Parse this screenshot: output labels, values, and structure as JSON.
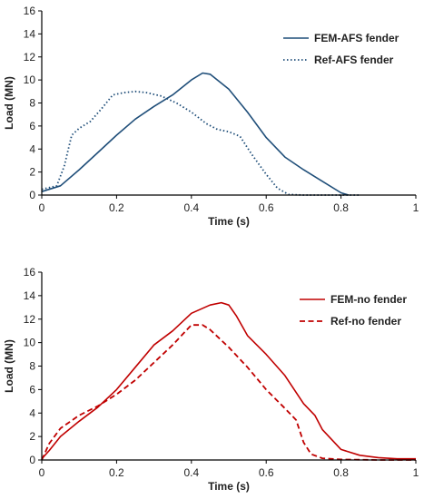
{
  "chart_data": [
    {
      "type": "line",
      "xlabel": "Time (s)",
      "ylabel": "Load (MN)",
      "xlim": [
        0,
        1
      ],
      "ylim": [
        0,
        16
      ],
      "xticks": [
        0,
        0.2,
        0.4,
        0.6,
        0.8,
        1
      ],
      "yticks": [
        0,
        2,
        4,
        6,
        8,
        10,
        12,
        14,
        16
      ],
      "xtick_labels": [
        "0",
        "0.2",
        "0.4",
        "0.6",
        "0.8",
        "1"
      ],
      "ytick_labels": [
        "0",
        "2",
        "4",
        "6",
        "8",
        "10",
        "12",
        "14",
        "16"
      ],
      "grid": false,
      "legend_position": "top-right",
      "series": [
        {
          "name": "FEM-AFS fender",
          "color": "#1f4e79",
          "style": "solid",
          "x": [
            0,
            0.05,
            0.1,
            0.15,
            0.2,
            0.25,
            0.3,
            0.35,
            0.4,
            0.43,
            0.45,
            0.5,
            0.55,
            0.6,
            0.65,
            0.7,
            0.75,
            0.8,
            0.82
          ],
          "y": [
            0.3,
            0.8,
            2.2,
            3.7,
            5.2,
            6.6,
            7.7,
            8.7,
            10.0,
            10.6,
            10.5,
            9.2,
            7.2,
            5.0,
            3.3,
            2.2,
            1.2,
            0.2,
            0
          ]
        },
        {
          "name": "Ref-AFS fender",
          "color": "#1f4e79",
          "style": "dotted",
          "x": [
            0,
            0.04,
            0.06,
            0.08,
            0.1,
            0.13,
            0.16,
            0.19,
            0.22,
            0.25,
            0.28,
            0.32,
            0.36,
            0.4,
            0.44,
            0.47,
            0.5,
            0.53,
            0.56,
            0.6,
            0.63,
            0.66,
            0.7,
            0.85
          ],
          "y": [
            0.5,
            0.8,
            2.5,
            5.2,
            5.8,
            6.4,
            7.5,
            8.7,
            8.9,
            9.0,
            8.9,
            8.6,
            8.0,
            7.2,
            6.2,
            5.7,
            5.5,
            5.1,
            3.6,
            1.8,
            0.6,
            0.05,
            0,
            0
          ]
        }
      ]
    },
    {
      "type": "line",
      "xlabel": "Time (s)",
      "ylabel": "Load (MN)",
      "xlim": [
        0,
        1
      ],
      "ylim": [
        0,
        16
      ],
      "xticks": [
        0,
        0.2,
        0.4,
        0.6,
        0.8,
        1
      ],
      "yticks": [
        0,
        2,
        4,
        6,
        8,
        10,
        12,
        14,
        16
      ],
      "xtick_labels": [
        "0",
        "0.2",
        "0.4",
        "0.6",
        "0.8",
        "1"
      ],
      "ytick_labels": [
        "0",
        "2",
        "4",
        "6",
        "8",
        "10",
        "12",
        "14",
        "16"
      ],
      "grid": false,
      "legend_position": "top-right",
      "series": [
        {
          "name": "FEM-no fender",
          "color": "#c00000",
          "style": "solid",
          "x": [
            0,
            0.02,
            0.05,
            0.1,
            0.15,
            0.2,
            0.25,
            0.3,
            0.35,
            0.4,
            0.45,
            0.48,
            0.5,
            0.52,
            0.55,
            0.6,
            0.65,
            0.7,
            0.73,
            0.75,
            0.8,
            0.85,
            0.9,
            0.95,
            1.0
          ],
          "y": [
            0.1,
            0.8,
            2.0,
            3.3,
            4.5,
            6.0,
            7.9,
            9.8,
            11.0,
            12.5,
            13.2,
            13.4,
            13.2,
            12.3,
            10.6,
            9.0,
            7.2,
            4.8,
            3.8,
            2.6,
            0.9,
            0.4,
            0.2,
            0.1,
            0.1
          ]
        },
        {
          "name": "Ref-no fender",
          "color": "#c00000",
          "style": "dashed",
          "x": [
            0,
            0.02,
            0.05,
            0.1,
            0.15,
            0.2,
            0.25,
            0.3,
            0.35,
            0.4,
            0.43,
            0.45,
            0.5,
            0.55,
            0.6,
            0.65,
            0.68,
            0.7,
            0.72,
            0.75,
            0.8,
            0.9,
            1.0
          ],
          "y": [
            0,
            1.4,
            2.7,
            3.8,
            4.6,
            5.6,
            6.8,
            8.3,
            9.8,
            11.5,
            11.5,
            11.1,
            9.6,
            7.9,
            6.0,
            4.4,
            3.4,
            1.5,
            0.5,
            0.15,
            0.05,
            0,
            0
          ]
        }
      ]
    }
  ]
}
